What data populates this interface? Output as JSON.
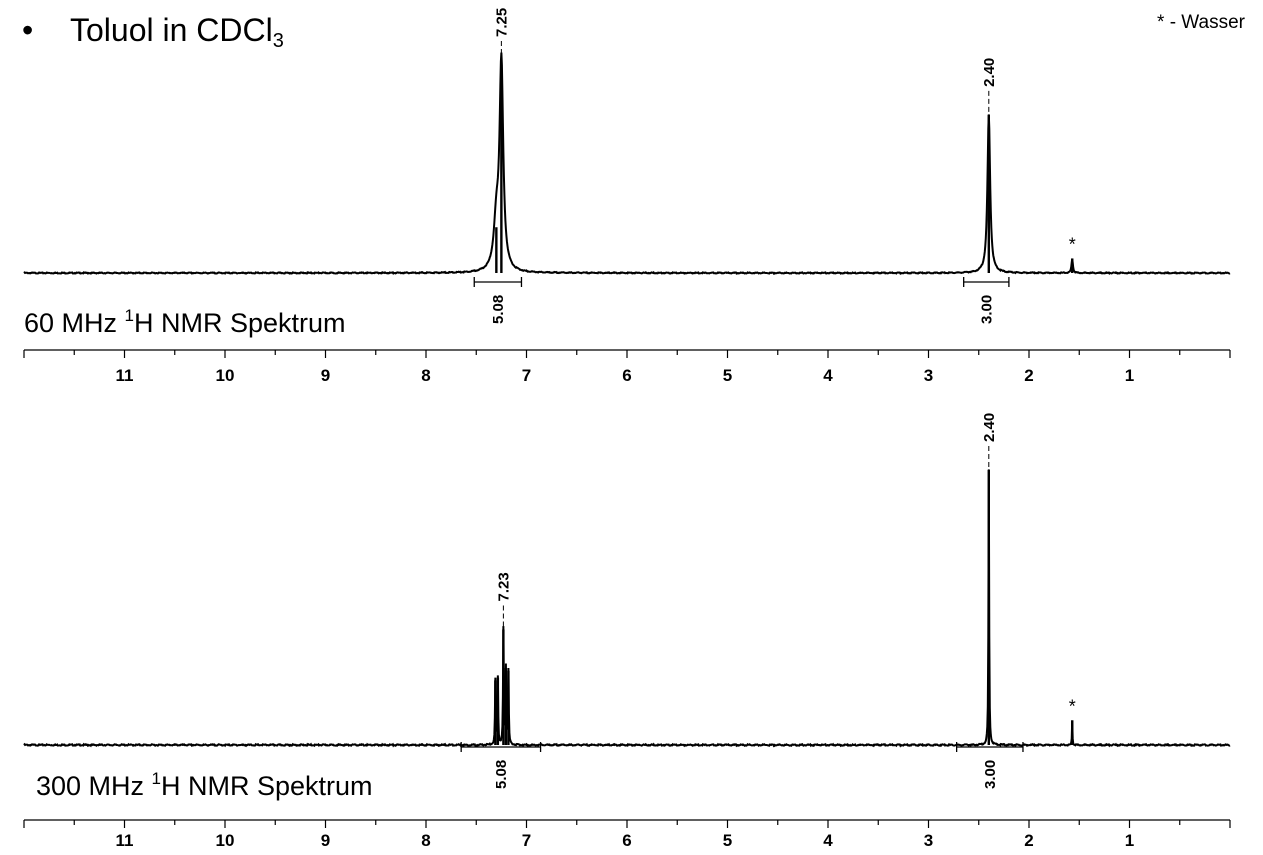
{
  "header": {
    "bullet": "•",
    "title_main": "Toluol in CDCl",
    "title_sub": "3",
    "note": "* - Wasser"
  },
  "chart_data": [
    {
      "type": "line",
      "title_prefix": "60 MHz ",
      "title_sup": "1",
      "title_rest": "H NMR Spektrum",
      "xlim": [
        12.0,
        0.0
      ],
      "x_reversed": true,
      "x_ticks": [
        "11",
        "10",
        "9",
        "8",
        "7",
        "6",
        "5",
        "4",
        "3",
        "2",
        "1"
      ],
      "x_tick_values": [
        11,
        10,
        9,
        8,
        7,
        6,
        5,
        4,
        3,
        2,
        1
      ],
      "peaks": [
        {
          "ppm": 7.25,
          "height": 1.0,
          "width": 0.022
        },
        {
          "ppm": 7.3,
          "height": 0.22,
          "width": 0.03
        },
        {
          "ppm": 2.4,
          "height": 0.76,
          "width": 0.016
        },
        {
          "ppm": 1.57,
          "height": 0.07,
          "width": 0.008
        }
      ],
      "peak_labels": [
        {
          "ppm": 7.25,
          "label": "7.25"
        },
        {
          "ppm": 2.4,
          "label": "2.40"
        }
      ],
      "marker": {
        "ppm": 1.57,
        "label": "*"
      },
      "integrals": [
        {
          "from": 7.52,
          "to": 7.05,
          "label": "5.08"
        },
        {
          "from": 2.65,
          "to": 2.2,
          "label": "3.00"
        }
      ]
    },
    {
      "type": "line",
      "title_prefix": "300 MHz ",
      "title_sup": "1",
      "title_rest": "H NMR Spektrum",
      "xlim": [
        12.0,
        0.0
      ],
      "x_reversed": true,
      "x_ticks": [
        "11",
        "10",
        "9",
        "8",
        "7",
        "6",
        "5",
        "4",
        "3",
        "2",
        "1"
      ],
      "x_tick_values": [
        11,
        10,
        9,
        8,
        7,
        6,
        5,
        4,
        3,
        2,
        1
      ],
      "peaks": [
        {
          "ppm": 7.31,
          "height": 0.235,
          "width": 0.004
        },
        {
          "ppm": 7.285,
          "height": 0.245,
          "width": 0.004
        },
        {
          "ppm": 7.23,
          "height": 0.42,
          "width": 0.004
        },
        {
          "ppm": 7.205,
          "height": 0.28,
          "width": 0.004
        },
        {
          "ppm": 7.18,
          "height": 0.27,
          "width": 0.004
        },
        {
          "ppm": 2.4,
          "height": 1.0,
          "width": 0.004
        },
        {
          "ppm": 1.57,
          "height": 0.09,
          "width": 0.003
        }
      ],
      "peak_labels": [
        {
          "ppm": 7.23,
          "label": "7.23"
        },
        {
          "ppm": 2.4,
          "label": "2.40"
        }
      ],
      "marker": {
        "ppm": 1.57,
        "label": "*"
      },
      "integrals": [
        {
          "from": 7.65,
          "to": 6.86,
          "label": "5.08"
        },
        {
          "from": 2.72,
          "to": 2.06,
          "label": "3.00"
        }
      ]
    }
  ]
}
